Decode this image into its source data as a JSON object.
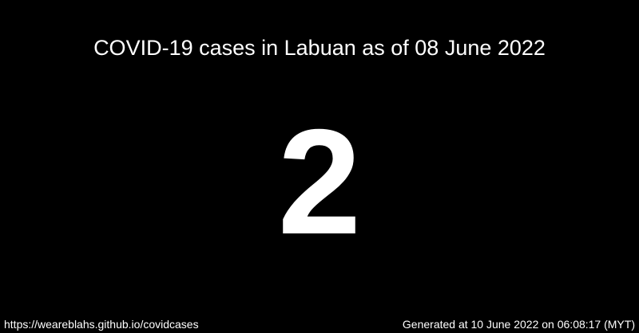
{
  "title": "COVID-19 cases in Labuan as of 08 June 2022",
  "case_count": "2",
  "footer": {
    "source_url": "https://weareblahs.github.io/covidcases",
    "generated": "Generated at 10 June 2022 on 06:08:17 (MYT)"
  },
  "colors": {
    "background": "#000000",
    "text": "#ffffff"
  }
}
